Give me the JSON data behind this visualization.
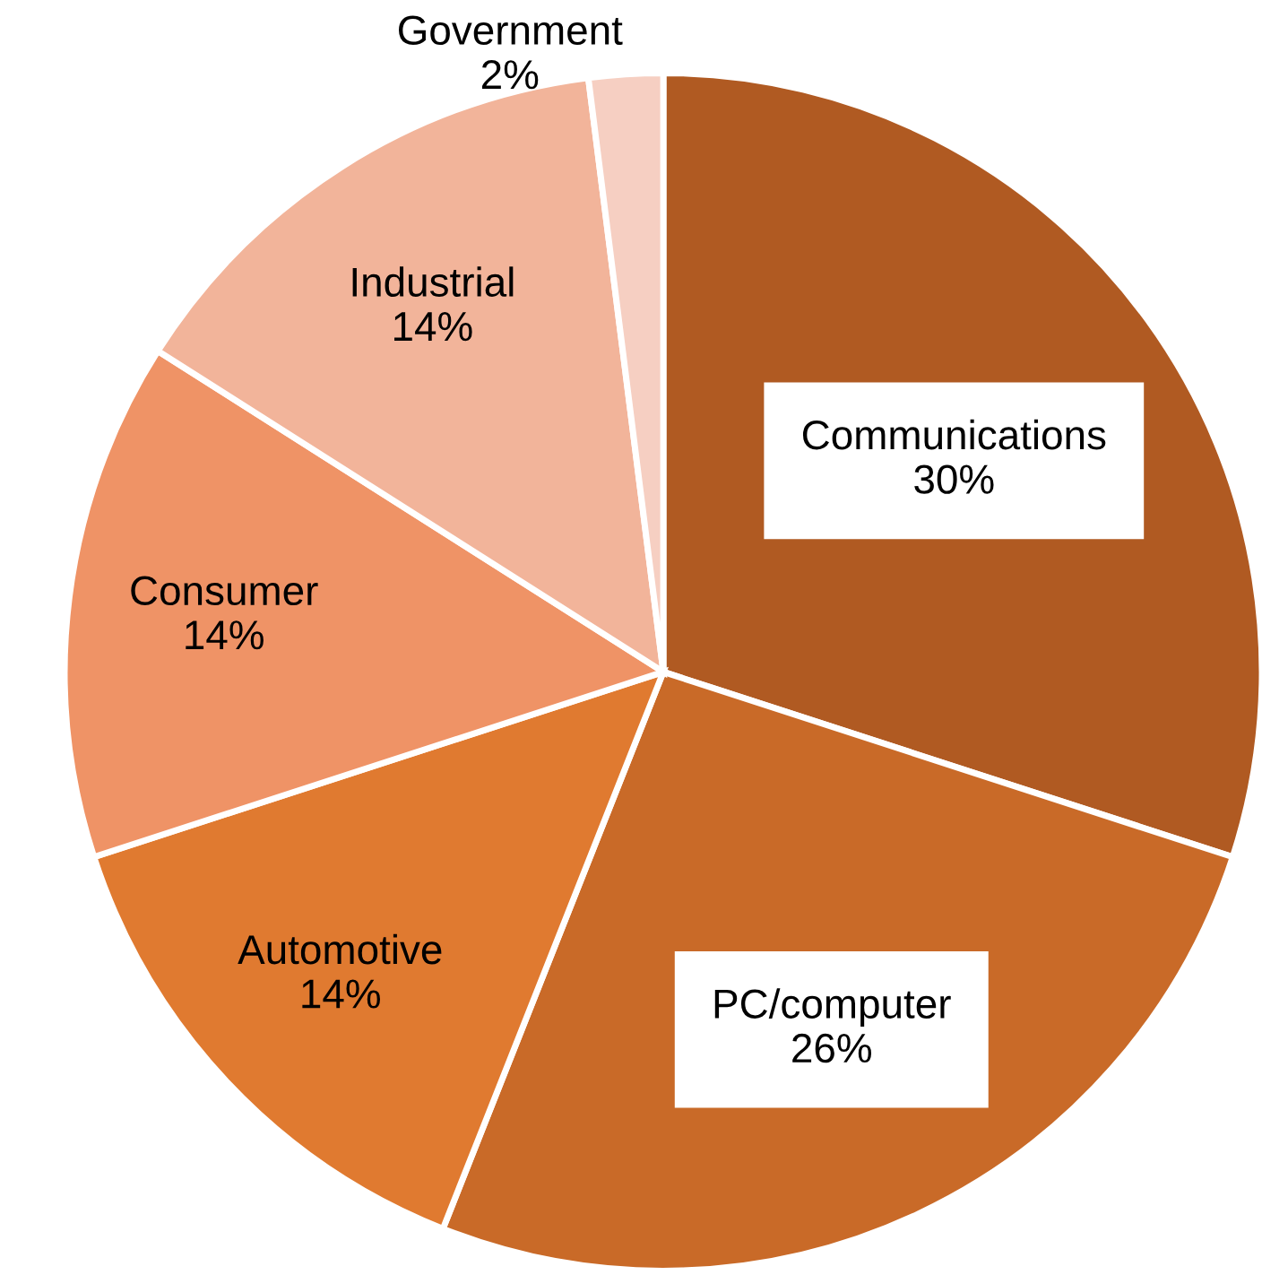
{
  "chart_data": {
    "type": "pie",
    "categories": [
      "Communications",
      "PC/computer",
      "Automotive",
      "Consumer",
      "Industrial",
      "Government"
    ],
    "values": [
      30,
      26,
      14,
      14,
      14,
      2
    ],
    "colors": [
      "#b05a22",
      "#c96a28",
      "#e07a30",
      "#ef9366",
      "#f2b49a",
      "#f6cfc2"
    ],
    "value_labels": [
      "30%",
      "26%",
      "14%",
      "14%",
      "14%",
      "2%"
    ]
  }
}
